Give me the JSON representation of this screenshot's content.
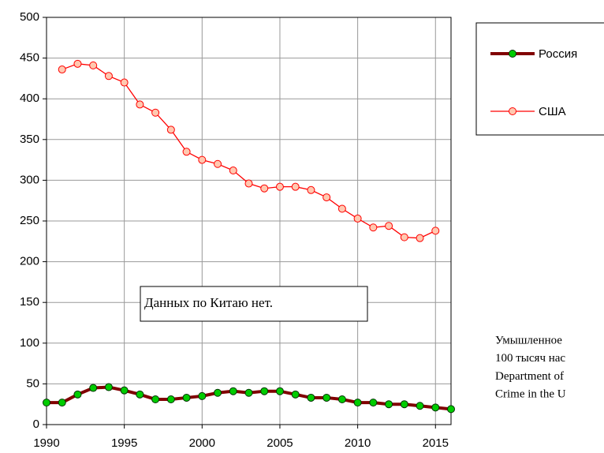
{
  "chart_data": {
    "type": "line",
    "x": [
      1990,
      1991,
      1992,
      1993,
      1994,
      1995,
      1996,
      1997,
      1998,
      1999,
      2000,
      2001,
      2002,
      2003,
      2004,
      2005,
      2006,
      2007,
      2008,
      2009,
      2010,
      2011,
      2012,
      2013,
      2014,
      2015,
      2016
    ],
    "series": [
      {
        "name": "Россия",
        "color": "#800000",
        "marker_color": "#00cc00",
        "values": [
          27,
          27,
          37,
          45,
          46,
          42,
          37,
          31,
          31,
          33,
          35,
          39,
          41,
          39,
          41,
          41,
          37,
          33,
          33,
          31,
          27,
          27,
          25,
          25,
          23,
          21,
          19
        ]
      },
      {
        "name": "США",
        "color": "#ff0000",
        "marker_color": "#ffc8b0",
        "values": [
          null,
          436,
          443,
          441,
          428,
          420,
          393,
          383,
          362,
          335,
          325,
          320,
          312,
          296,
          290,
          292,
          292,
          288,
          279,
          265,
          253,
          242,
          244,
          230,
          229,
          238,
          null
        ]
      }
    ],
    "xlim": [
      1990,
      2016
    ],
    "xticks": [
      1990,
      1995,
      2000,
      2005,
      2010,
      2015
    ],
    "ylim": [
      0,
      500
    ],
    "yticks": [
      0,
      50,
      100,
      150,
      200,
      250,
      300,
      350,
      400,
      450,
      500
    ],
    "grid": true,
    "legend": "right",
    "annotation": "Данных по Китаю нет.",
    "note_lines": [
      "Умышленное",
      "100 тысяч нас",
      "Department of",
      "Crime in the U"
    ]
  }
}
